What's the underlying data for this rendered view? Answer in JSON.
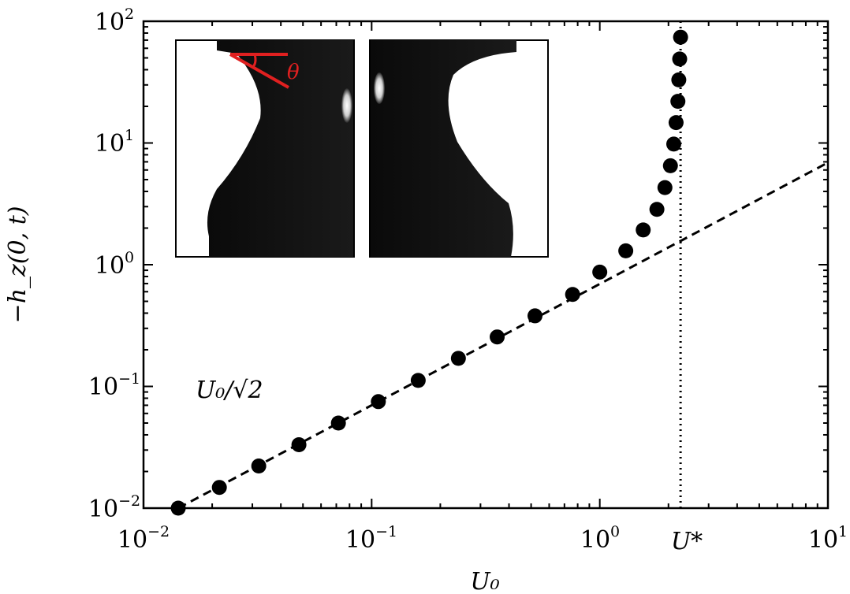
{
  "chart_data": {
    "type": "scatter",
    "xscale": "log",
    "yscale": "log",
    "xlim": [
      0.01,
      10
    ],
    "ylim": [
      0.01,
      100
    ],
    "xlabel": "U₀",
    "ylabel": "−h_z(0, t)",
    "x_ticks": [
      {
        "value": 0.01,
        "base": "10",
        "exp": "−2"
      },
      {
        "value": 0.1,
        "base": "10",
        "exp": "−1"
      },
      {
        "value": 1,
        "base": "10",
        "exp": "0"
      },
      {
        "value": 10,
        "base": "10",
        "exp": "1"
      }
    ],
    "y_ticks": [
      {
        "value": 0.01,
        "base": "10",
        "exp": "−2"
      },
      {
        "value": 0.1,
        "base": "10",
        "exp": "−1"
      },
      {
        "value": 1,
        "base": "10",
        "exp": "0"
      },
      {
        "value": 10,
        "base": "10",
        "exp": "1"
      },
      {
        "value": 100,
        "base": "10",
        "exp": "2"
      }
    ],
    "series": [
      {
        "style": "markers",
        "color": "#000000",
        "points": [
          [
            0.0142,
            0.01
          ],
          [
            0.0215,
            0.0148
          ],
          [
            0.032,
            0.0222
          ],
          [
            0.048,
            0.0332
          ],
          [
            0.0715,
            0.05
          ],
          [
            0.107,
            0.075
          ],
          [
            0.16,
            0.112
          ],
          [
            0.24,
            0.17
          ],
          [
            0.355,
            0.255
          ],
          [
            0.52,
            0.38
          ],
          [
            0.76,
            0.57
          ],
          [
            1.0,
            0.87
          ],
          [
            1.3,
            1.3
          ],
          [
            1.55,
            1.93
          ],
          [
            1.78,
            2.85
          ],
          [
            1.93,
            4.3
          ],
          [
            2.04,
            6.5
          ],
          [
            2.11,
            9.8
          ],
          [
            2.16,
            14.7
          ],
          [
            2.2,
            22.0
          ],
          [
            2.22,
            33.0
          ],
          [
            2.24,
            49.0
          ],
          [
            2.26,
            74.0
          ]
        ]
      },
      {
        "style": "dashed",
        "color": "#000000",
        "points": [
          [
            0.0142,
            0.01
          ],
          [
            10,
            6.9
          ]
        ]
      }
    ],
    "reference_line": {
      "style": "dotted",
      "x": 2.26,
      "label": "U*"
    },
    "annotations": [
      {
        "text": "U₀/√2"
      }
    ],
    "inset": {
      "images": [
        "left-frame",
        "right-frame"
      ],
      "angle_label": "θ",
      "angle_color": "#e02020"
    }
  }
}
